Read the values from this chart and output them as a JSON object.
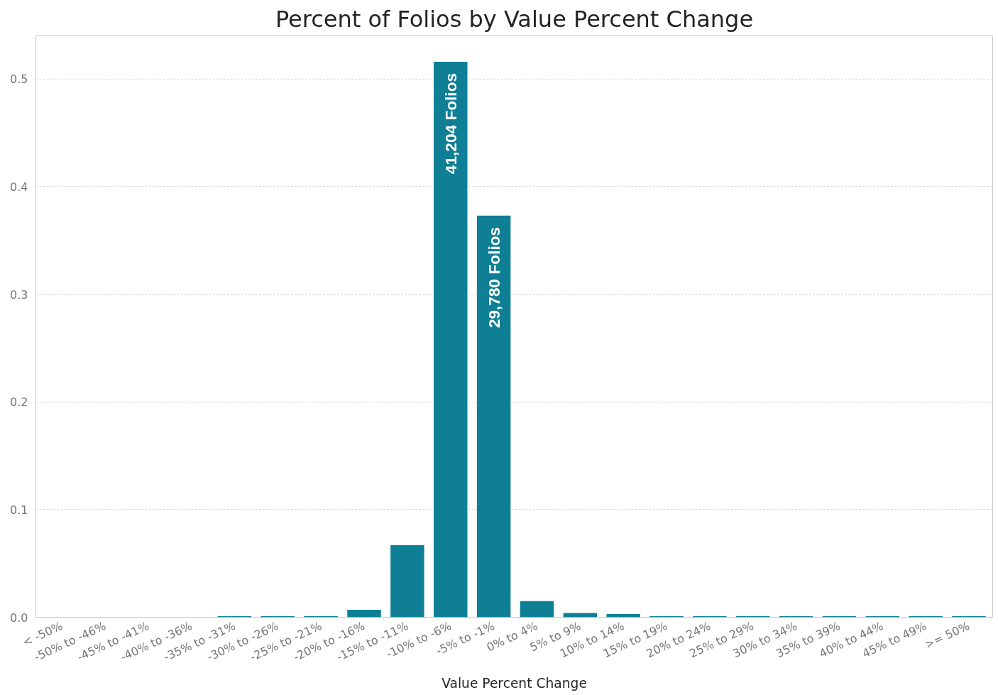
{
  "chart_data": {
    "type": "bar",
    "title": "Percent of Folios by Value Percent Change",
    "xlabel": "Value Percent Change",
    "categories": [
      "< -50%",
      "-50% to -46%",
      "-45% to -41%",
      "-40% to -36%",
      "-35% to -31%",
      "-30% to -26%",
      "-25% to -21%",
      "-20% to -16%",
      "-15% to -11%",
      "-10% to -6%",
      "-5% to -1%",
      "0% to 4%",
      "5% to 9%",
      "10% to 14%",
      "15% to 19%",
      "20% to 24%",
      "25% to 29%",
      "30% to 34%",
      "35% to 39%",
      "40% to 44%",
      "45% to 49%",
      ">= 50%"
    ],
    "values": [
      null,
      null,
      null,
      null,
      0.001,
      0.001,
      0.001,
      0.007,
      0.067,
      0.516,
      0.373,
      0.015,
      0.004,
      0.003,
      0.001,
      0.001,
      0.001,
      0.001,
      0.001,
      0.001,
      0.001,
      0.001
    ],
    "annotations": [
      {
        "text": "41,204 Folios",
        "x": "-10% to -6%",
        "y": 0.516
      },
      {
        "text": "29,780 Folios",
        "x": "-5% to -1%",
        "y": 0.373
      }
    ],
    "color": "#0e7f95",
    "ylim": [
      0,
      0.54
    ],
    "yticks": [
      {
        "value": 0,
        "label": "0.0"
      },
      {
        "value": 0.1,
        "label": "0.1"
      },
      {
        "value": 0.2,
        "label": "0.2"
      },
      {
        "value": 0.3,
        "label": "0.3"
      },
      {
        "value": 0.4,
        "label": "0.4"
      },
      {
        "value": 0.5,
        "label": "0.5"
      }
    ],
    "grid": "y"
  }
}
